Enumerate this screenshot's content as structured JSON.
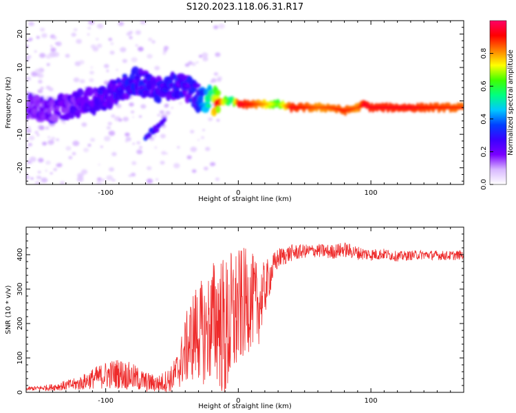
{
  "figure_title": "S120.2023.118.06.31.R17",
  "chart_data": [
    {
      "type": "heatmap",
      "title": "S120.2023.118.06.31.R17",
      "xlabel": "Height of straight line (km)",
      "ylabel": "Frequency (Hz)",
      "xlim": [
        -160,
        170
      ],
      "ylim": [
        -25,
        24
      ],
      "x_ticks": [
        -100,
        0,
        100
      ],
      "y_ticks": [
        20,
        10,
        0,
        -10,
        -20
      ],
      "colorbar": {
        "label": "Normalized spectral amplitude",
        "range": [
          0,
          1
        ],
        "ticks": [
          "0.0",
          "0.2",
          "0.4",
          "0.6",
          "0.8"
        ],
        "colormap": [
          "#ffffff",
          "#d8b8ff",
          "#7a00ff",
          "#3b00ff",
          "#0040ff",
          "#00c8ff",
          "#00ff80",
          "#40ff00",
          "#ffff00",
          "#ff8000",
          "#ff0000",
          "#ff0066"
        ]
      },
      "spectral_ridge": {
        "x": [
          -160,
          -140,
          -120,
          -100,
          -90,
          -80,
          -70,
          -60,
          -50,
          -40,
          -30,
          -20,
          -15,
          -10,
          -5,
          0,
          10,
          20,
          30,
          40,
          50,
          60,
          70,
          80,
          90,
          95,
          100,
          110,
          120,
          130,
          140,
          150,
          160,
          170
        ],
        "frequency_hz": [
          -2,
          -3,
          -1,
          1,
          3,
          6,
          5,
          3,
          5,
          4,
          1,
          0,
          0,
          0,
          0,
          -1,
          -1,
          -1,
          -1,
          -2,
          -2,
          -2,
          -2,
          -3,
          -2,
          -1,
          -2,
          -2,
          -2,
          -2,
          -2,
          -2,
          -2,
          -2
        ],
        "amplitude": [
          0.18,
          0.2,
          0.22,
          0.25,
          0.26,
          0.28,
          0.27,
          0.27,
          0.27,
          0.26,
          0.3,
          0.55,
          0.92,
          0.65,
          0.5,
          0.9,
          0.85,
          0.75,
          0.6,
          0.88,
          0.85,
          0.8,
          0.82,
          0.85,
          0.8,
          0.9,
          0.88,
          0.88,
          0.88,
          0.88,
          0.86,
          0.85,
          0.84,
          0.83
        ]
      },
      "secondary_feature": {
        "x": [
          -70,
          -65,
          -60,
          -55
        ],
        "frequency_hz": [
          -11,
          -9,
          -8,
          -6
        ],
        "amplitude": [
          0.3,
          0.26,
          0.25,
          0.26
        ]
      }
    },
    {
      "type": "line",
      "xlabel": "Height of straight line (km)",
      "ylabel": "SNR (10 * v/v)",
      "xlim": [
        -160,
        170
      ],
      "ylim": [
        0,
        480
      ],
      "x_ticks": [
        -100,
        0,
        100
      ],
      "y_ticks": [
        0,
        100,
        200,
        300,
        400
      ],
      "line_color": "#ee2a2a",
      "series": [
        {
          "x": [
            -160,
            -150,
            -140,
            -130,
            -120,
            -110,
            -100,
            -90,
            -80,
            -70,
            -60,
            -50,
            -45,
            -40,
            -35,
            -30,
            -25,
            -20,
            -15,
            -10,
            -5,
            0,
            5,
            10,
            15,
            20,
            25,
            30,
            40,
            50,
            60,
            70,
            80,
            90,
            100,
            110,
            120,
            130,
            140,
            150,
            160,
            170
          ],
          "y": [
            10,
            12,
            15,
            20,
            25,
            40,
            50,
            55,
            45,
            30,
            25,
            40,
            70,
            120,
            160,
            180,
            170,
            200,
            220,
            170,
            210,
            240,
            260,
            270,
            250,
            300,
            350,
            390,
            405,
            410,
            412,
            408,
            415,
            405,
            400,
            402,
            395,
            398,
            400,
            398,
            397,
            400
          ],
          "envelope": [
            5,
            8,
            10,
            15,
            20,
            30,
            40,
            45,
            40,
            30,
            25,
            40,
            60,
            100,
            130,
            150,
            150,
            180,
            200,
            220,
            210,
            180,
            160,
            140,
            120,
            80,
            50,
            30,
            25,
            20,
            20,
            22,
            22,
            20,
            18,
            16,
            15,
            14,
            14,
            14,
            14,
            14
          ]
        }
      ]
    }
  ]
}
